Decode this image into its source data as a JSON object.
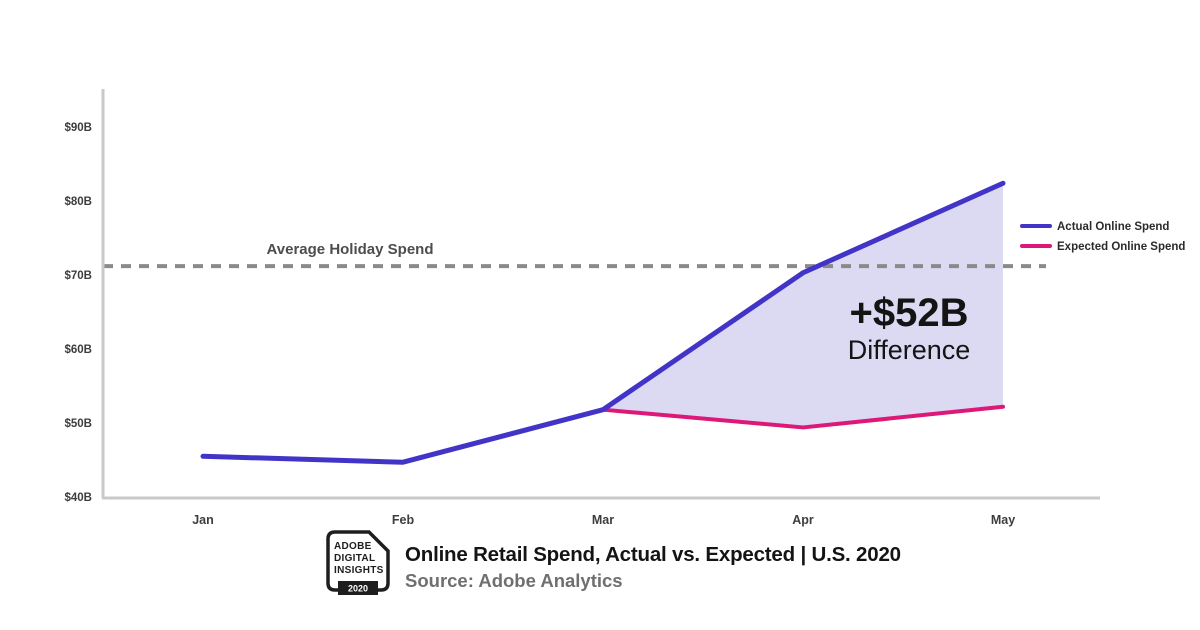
{
  "colors": {
    "actual": "#4334c8",
    "expected": "#dd1878",
    "area_fill": "#dcd9f3",
    "dashed": "#8a8a8a",
    "axis": "#c9c9c9",
    "tick_text": "#3d3d3d",
    "legend_text": "#2b2b2b",
    "annotation": "#141414",
    "avg_label": "#4d4d4d"
  },
  "chart_data": {
    "type": "line",
    "title": "Online Retail Spend, Actual vs. Expected | U.S. 2020",
    "categories": [
      "Jan",
      "Feb",
      "Mar",
      "Apr",
      "May"
    ],
    "series": [
      {
        "name": "Actual Online Spend",
        "values": [
          45.5,
          44.7,
          51.8,
          70.3,
          82.4
        ]
      },
      {
        "name": "Expected Online Spend",
        "values": [
          45.5,
          44.7,
          51.8,
          49.4,
          52.2
        ]
      }
    ],
    "y_ticks": [
      "$40B",
      "$50B",
      "$60B",
      "$70B",
      "$80B",
      "$90B"
    ],
    "y_tick_values": [
      40,
      50,
      60,
      70,
      80,
      90
    ],
    "ylim": [
      40,
      90
    ],
    "xlabel": "",
    "ylabel": "",
    "grid": false,
    "legend_position": "right",
    "legend": [
      "Actual Online Spend",
      "Expected Online Spend"
    ],
    "reference_line": {
      "value": 71.2,
      "label": "Average Holiday Spend"
    },
    "area_between": {
      "from_index": 2,
      "to_index": 4
    },
    "annotation": {
      "value_label": "+$52B",
      "sub_label": "Difference"
    }
  },
  "footer": {
    "title": "Online Retail Spend, Actual vs. Expected | U.S. 2020",
    "source": "Source: Adobe Analytics",
    "logo": {
      "lines": [
        "ADOBE",
        "DIGITAL",
        "INSIGHTS"
      ],
      "badge": "2020"
    }
  }
}
